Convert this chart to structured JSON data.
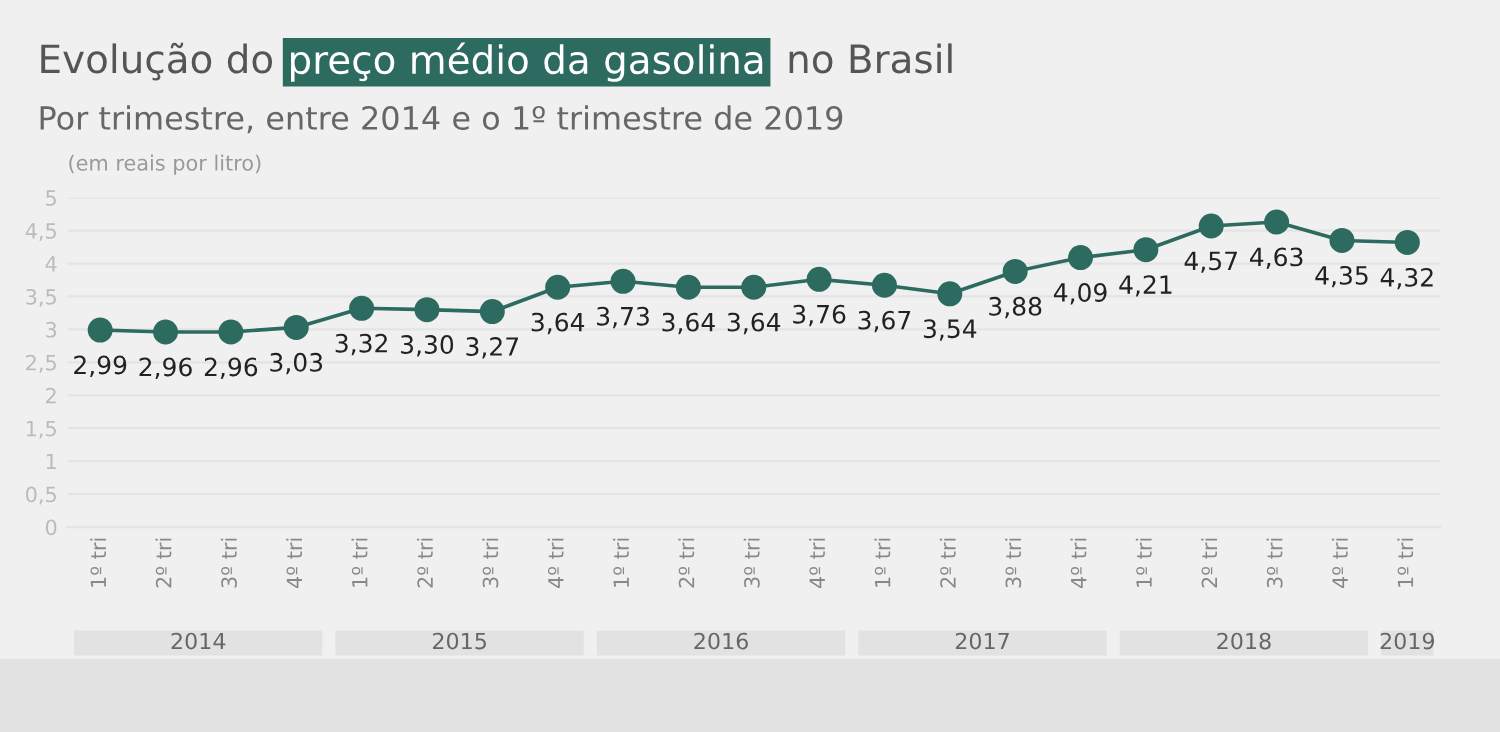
{
  "chart_data": {
    "type": "line",
    "title": "Evolução do preço médio da gasolina no Brasil",
    "subtitle": "Por trimestre, entre 2014 e o 1º trimestre de 2019",
    "annotations": [
      "(em reais por litro)",
      "2014",
      "2015",
      "2016",
      "2017",
      "2018",
      "2019"
    ],
    "categories": [
      "1º tri",
      "2º tri",
      "3º tri",
      "4º tri",
      "1º tri",
      "2º tri",
      "3º tri",
      "4º tri",
      "1º tri",
      "2º tri",
      "3º tri",
      "4º tri",
      "1º tri",
      "2º tri",
      "3º tri",
      "4º tri",
      "1º tri",
      "2º tri",
      "3º tri",
      "4º tri",
      "1º tri"
    ],
    "series": [
      {
        "color": "#2d6b61",
        "values": [
          2.99,
          2.96,
          2.96,
          3.03,
          3.32,
          3.3,
          3.27,
          3.64,
          3.73,
          3.64,
          3.64,
          3.76,
          3.67,
          3.54,
          3.88,
          4.09,
          4.21,
          4.57,
          4.63,
          4.35,
          4.32
        ],
        "value_labels": [
          "2,99",
          "2,96",
          "2,96",
          "3,03",
          "3,32",
          "3,30",
          "3,27",
          "3,64",
          "3,73",
          "3,64",
          "3,64",
          "3,76",
          "3,67",
          "3,54",
          "3,88",
          "4,09",
          "4,21",
          "4,57",
          "4,63",
          "4,35",
          "4,32"
        ]
      }
    ],
    "ylim": [
      0,
      5
    ],
    "yticks": [
      0,
      {
        "value": 0.5,
        "label": "0,5"
      },
      1,
      {
        "value": 1.5,
        "label": "1,5"
      },
      2,
      {
        "value": 2.5,
        "label": "2,5"
      },
      3,
      {
        "value": 3.5,
        "label": "3,5"
      },
      4,
      {
        "value": 4.5,
        "label": "4,5"
      },
      5
    ],
    "grid": "y",
    "marker": "circle",
    "line_style": "solid",
    "legend": false
  }
}
